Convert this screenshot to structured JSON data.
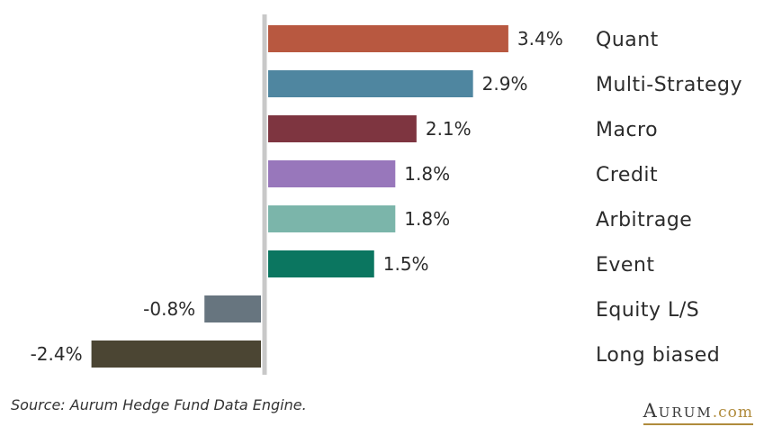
{
  "chart_data": {
    "type": "bar",
    "orientation": "horizontal",
    "categories": [
      "Quant",
      "Multi-Strategy",
      "Macro",
      "Credit",
      "Arbitrage",
      "Event",
      "Equity L/S",
      "Long biased"
    ],
    "values": [
      3.4,
      2.9,
      2.1,
      1.8,
      1.8,
      1.5,
      -0.8,
      -2.4
    ],
    "value_labels": [
      "3.4%",
      "2.9%",
      "2.1%",
      "1.8%",
      "1.8%",
      "1.5%",
      "-0.8%",
      "-2.4%"
    ],
    "colors": [
      "#b85840",
      "#4f86a0",
      "#7e3540",
      "#9877bb",
      "#7bb5aa",
      "#0b7660",
      "#67757f",
      "#4b4533"
    ],
    "axis_color": "#c8c8c8",
    "grid": false,
    "legend": "none",
    "title": "",
    "xlabel": "",
    "ylabel": ""
  },
  "footer": {
    "source": "Source: Aurum Hedge Fund Data Engine.",
    "logo_word": "Aurum",
    "logo_suffix": ".com"
  }
}
